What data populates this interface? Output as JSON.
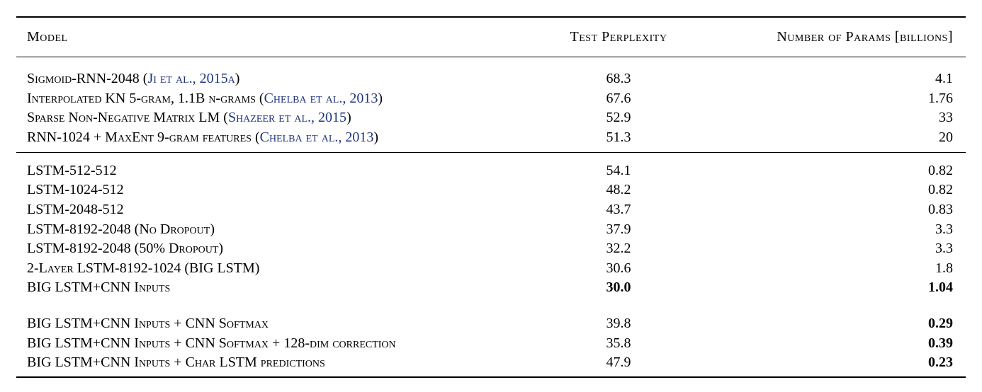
{
  "table": {
    "columns": {
      "model": "Model",
      "perplexity": "Test Perplexity",
      "params": "Number of Params [billions]"
    },
    "cite_color": "#20357f",
    "groups": [
      {
        "divider_after": true,
        "rows": [
          {
            "model_parts": [
              {
                "text": "Sigmoid-RNN-2048 (",
                "cite": false
              },
              {
                "text": "Ji et al., 2015a",
                "cite": true
              },
              {
                "text": ")",
                "cite": false
              }
            ],
            "perplexity": "68.3",
            "params": "4.1",
            "bold_perplexity": false,
            "bold_params": false
          },
          {
            "model_parts": [
              {
                "text": "Interpolated KN 5-gram, 1.1B n-grams (",
                "cite": false
              },
              {
                "text": "Chelba et al., 2013",
                "cite": true
              },
              {
                "text": ")",
                "cite": false
              }
            ],
            "perplexity": "67.6",
            "params": "1.76",
            "bold_perplexity": false,
            "bold_params": false
          },
          {
            "model_parts": [
              {
                "text": "Sparse Non-Negative Matrix LM (",
                "cite": false
              },
              {
                "text": "Shazeer et al., 2015",
                "cite": true
              },
              {
                "text": ")",
                "cite": false
              }
            ],
            "perplexity": "52.9",
            "params": "33",
            "bold_perplexity": false,
            "bold_params": false
          },
          {
            "model_parts": [
              {
                "text": "RNN-1024 + MaxEnt 9-gram features (",
                "cite": false
              },
              {
                "text": "Chelba et al., 2013",
                "cite": true
              },
              {
                "text": ")",
                "cite": false
              }
            ],
            "perplexity": "51.3",
            "params": "20",
            "bold_perplexity": false,
            "bold_params": false
          }
        ]
      },
      {
        "divider_after": false,
        "rows": [
          {
            "model_parts": [
              {
                "text": "LSTM-512-512",
                "cite": false
              }
            ],
            "perplexity": "54.1",
            "params": "0.82",
            "bold_perplexity": false,
            "bold_params": false
          },
          {
            "model_parts": [
              {
                "text": "LSTM-1024-512",
                "cite": false
              }
            ],
            "perplexity": "48.2",
            "params": "0.82",
            "bold_perplexity": false,
            "bold_params": false
          },
          {
            "model_parts": [
              {
                "text": "LSTM-2048-512",
                "cite": false
              }
            ],
            "perplexity": "43.7",
            "params": "0.83",
            "bold_perplexity": false,
            "bold_params": false
          },
          {
            "model_parts": [
              {
                "text": "LSTM-8192-2048 (No Dropout)",
                "cite": false
              }
            ],
            "perplexity": "37.9",
            "params": "3.3",
            "bold_perplexity": false,
            "bold_params": false
          },
          {
            "model_parts": [
              {
                "text": "LSTM-8192-2048 (50% Dropout)",
                "cite": false
              }
            ],
            "perplexity": "32.2",
            "params": "3.3",
            "bold_perplexity": false,
            "bold_params": false
          },
          {
            "model_parts": [
              {
                "text": "2-Layer LSTM-8192-1024 (BIG LSTM)",
                "cite": false
              }
            ],
            "perplexity": "30.6",
            "params": "1.8",
            "bold_perplexity": false,
            "bold_params": false
          },
          {
            "model_parts": [
              {
                "text": "BIG LSTM+CNN Inputs",
                "cite": false
              }
            ],
            "perplexity": "30.0",
            "params": "1.04",
            "bold_perplexity": true,
            "bold_params": true
          }
        ]
      },
      {
        "divider_after": false,
        "rows": [
          {
            "model_parts": [
              {
                "text": "BIG LSTM+CNN Inputs + CNN Softmax",
                "cite": false
              }
            ],
            "perplexity": "39.8",
            "params": "0.29",
            "bold_perplexity": false,
            "bold_params": true
          },
          {
            "model_parts": [
              {
                "text": "BIG LSTM+CNN Inputs + CNN Softmax + 128-dim correction",
                "cite": false
              }
            ],
            "perplexity": "35.8",
            "params": "0.39",
            "bold_perplexity": false,
            "bold_params": true
          },
          {
            "model_parts": [
              {
                "text": "BIG LSTM+CNN Inputs + Char LSTM predictions",
                "cite": false
              }
            ],
            "perplexity": "47.9",
            "params": "0.23",
            "bold_perplexity": false,
            "bold_params": true
          }
        ]
      }
    ]
  }
}
